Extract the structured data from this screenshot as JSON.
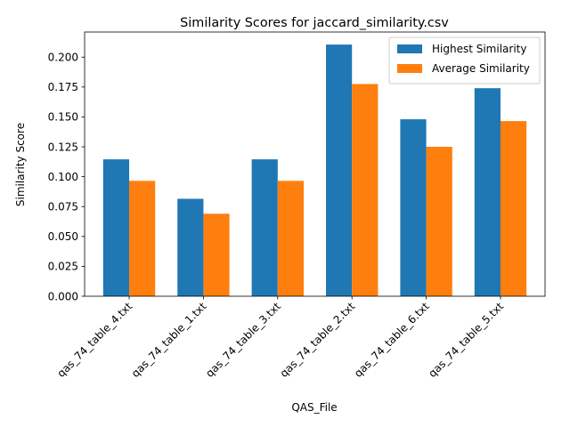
{
  "chart_data": {
    "type": "bar",
    "title": "Similarity Scores for jaccard_similarity.csv",
    "xlabel": "QAS_File",
    "ylabel": "Similarity Score",
    "categories": [
      "qas_74_table_4.txt",
      "qas_74_table_1.txt",
      "qas_74_table_3.txt",
      "qas_74_table_2.txt",
      "qas_74_table_6.txt",
      "qas_74_table_5.txt"
    ],
    "series": [
      {
        "name": "Highest Similarity",
        "color": "#1f77b4",
        "values": [
          0.1145,
          0.0815,
          0.1145,
          0.2105,
          0.148,
          0.174
        ]
      },
      {
        "name": "Average Similarity",
        "color": "#ff7f0e",
        "values": [
          0.0965,
          0.069,
          0.0965,
          0.1775,
          0.125,
          0.1465
        ]
      }
    ],
    "ylim": [
      0,
      0.221
    ],
    "yticks": [
      "0.000",
      "0.025",
      "0.050",
      "0.075",
      "0.100",
      "0.125",
      "0.150",
      "0.175",
      "0.200"
    ],
    "legend_position": "top-right",
    "grid": false
  }
}
